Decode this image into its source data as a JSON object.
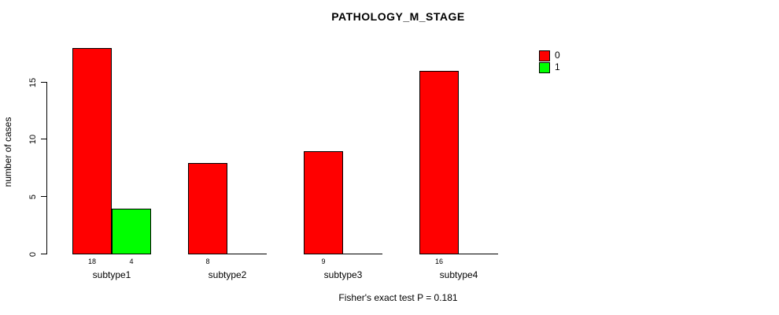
{
  "title": "PATHOLOGY_M_STAGE",
  "y_axis_label": "number of cases",
  "footer": "Fisher's exact test P = 0.181",
  "legend": {
    "items": [
      {
        "label": "0",
        "color": "#ff0000"
      },
      {
        "label": "1",
        "color": "#00ff00"
      }
    ]
  },
  "chart_data": {
    "type": "bar",
    "title": "PATHOLOGY_M_STAGE",
    "categories": [
      "subtype1",
      "subtype2",
      "subtype3",
      "subtype4"
    ],
    "series": [
      {
        "name": "0",
        "color": "#ff0000",
        "values": [
          18,
          8,
          9,
          16
        ]
      },
      {
        "name": "1",
        "color": "#00ff00",
        "values": [
          4,
          0,
          0,
          0
        ]
      }
    ],
    "bar_value_labels": [
      [
        "18",
        "8",
        "9",
        "16"
      ],
      [
        "4",
        "",
        "",
        ""
      ]
    ],
    "xlabel": "",
    "ylabel": "number of cases",
    "ylim": [
      0,
      18
    ],
    "yticks": [
      0,
      5,
      10,
      15
    ],
    "grid": false,
    "legend_position": "top-right",
    "annotation": "Fisher's exact test P = 0.181"
  }
}
